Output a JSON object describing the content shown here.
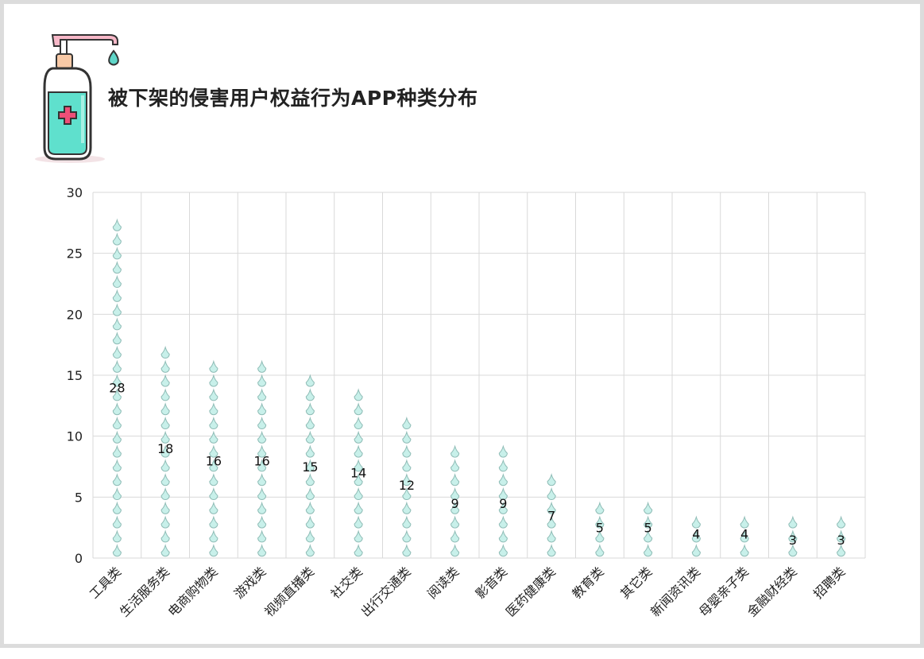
{
  "chart_data": {
    "type": "bar",
    "title": "被下架的侵害用户权益行为APP种类分布",
    "categories": [
      "工具类",
      "生活服务类",
      "电商购物类",
      "游戏类",
      "视频直播类",
      "社交类",
      "出行交通类",
      "阅读类",
      "影音类",
      "医药健康类",
      "教育类",
      "其它类",
      "新闻资讯类",
      "母婴亲子类",
      "金融财经类",
      "招聘类"
    ],
    "values": [
      28,
      18,
      16,
      16,
      15,
      14,
      12,
      9,
      9,
      7,
      5,
      5,
      4,
      4,
      3,
      3
    ],
    "ylim": [
      0,
      30
    ],
    "yticks": [
      0,
      5,
      10,
      15,
      20,
      25,
      30
    ],
    "xlabel": "",
    "ylabel": "",
    "grid": true,
    "legend": "none",
    "mark": "pictorial water droplets"
  },
  "colors": {
    "droplet_fill": "#c8f0ea",
    "droplet_stroke": "#8fbcb6",
    "grid": "#d9d9d9",
    "frame": "#dcdcdc",
    "bottle_liquid": "#4fd6c4",
    "pump": "#f2a5b8"
  },
  "icons": {
    "decoration": "hand-sanitizer-bottle-icon"
  }
}
